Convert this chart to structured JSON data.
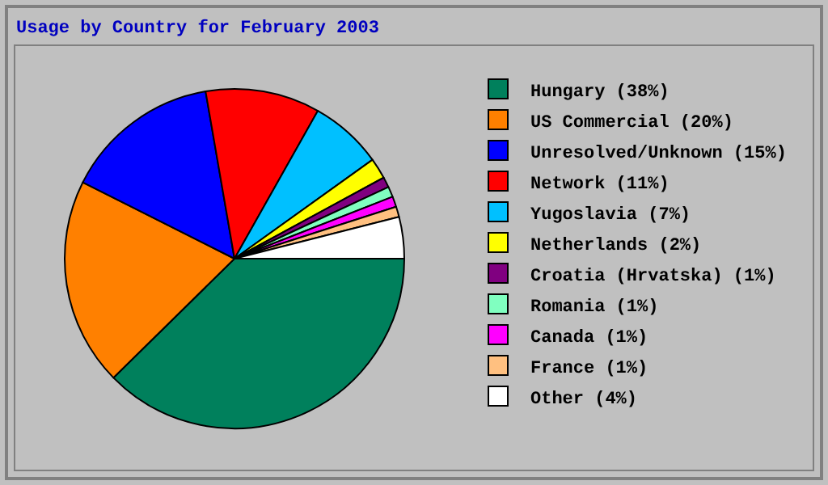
{
  "chart_data": {
    "type": "pie",
    "title": "Usage by Country for February 2003",
    "categories": [
      "Hungary",
      "US Commercial",
      "Unresolved/Unknown",
      "Network",
      "Yugoslavia",
      "Netherlands",
      "Croatia (Hrvatska)",
      "Romania",
      "Canada",
      "France",
      "Other"
    ],
    "values": [
      38,
      20,
      15,
      11,
      7,
      2,
      1,
      1,
      1,
      1,
      4
    ],
    "value_labels": [
      "(38%)",
      "(20%)",
      "(15%)",
      "(11%)",
      "(7%)",
      "(2%)",
      "(1%)",
      "(1%)",
      "(1%)",
      "(1%)",
      "(4%)"
    ],
    "colors": [
      "#00805c",
      "#ff8000",
      "#0000ff",
      "#ff0000",
      "#00c0ff",
      "#ffff00",
      "#800080",
      "#80ffc0",
      "#ff00ff",
      "#ffc080",
      "#ffffff"
    ],
    "legend": "right"
  }
}
